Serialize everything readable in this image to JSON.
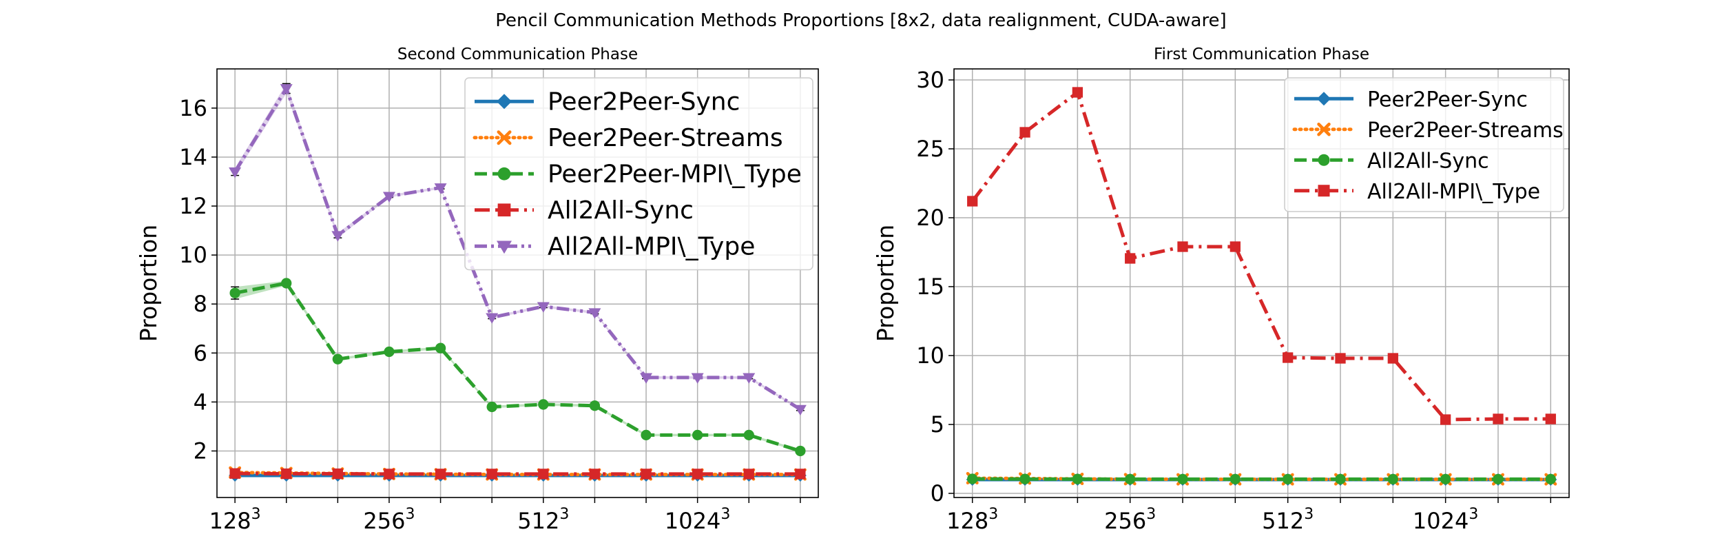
{
  "figure": {
    "title": "Pencil Communication Methods Proportions [8x2, data realignment, CUDA-aware]"
  },
  "chart_data": [
    {
      "type": "line",
      "title": "Second Communication Phase",
      "xlabel": "",
      "ylabel": "Proportion",
      "x": [
        1,
        2,
        3,
        4,
        5,
        6,
        7,
        8,
        9,
        10,
        11,
        12
      ],
      "xticks": [
        {
          "x": 1,
          "base": "128",
          "exp": "3"
        },
        {
          "x": 4,
          "base": "256",
          "exp": "3"
        },
        {
          "x": 7,
          "base": "512",
          "exp": "3"
        },
        {
          "x": 10,
          "base": "1024",
          "exp": "3"
        }
      ],
      "xlim": [
        0.65,
        12.35
      ],
      "ylim": [
        0.1,
        17.6
      ],
      "yticks": [
        2,
        4,
        6,
        8,
        10,
        12,
        14,
        16
      ],
      "grid": true,
      "legend_position": "top-right",
      "series": [
        {
          "name": "Peer2Peer-Sync",
          "color": "#1f77b4",
          "marker": "diamond",
          "dash": "solid",
          "values": [
            1,
            1,
            1,
            1,
            1,
            1,
            1,
            1,
            1,
            1,
            1,
            1
          ]
        },
        {
          "name": "Peer2Peer-Streams",
          "color": "#ff7f0e",
          "marker": "x",
          "dash": "dotted",
          "values": [
            1.12,
            1.1,
            1.08,
            1.06,
            1.05,
            1.04,
            1.04,
            1.04,
            1.04,
            1.04,
            1.04,
            1.04
          ]
        },
        {
          "name": "Peer2Peer-MPI\\_Type",
          "color": "#2ca02c",
          "marker": "circle",
          "dash": "dashed",
          "values": [
            8.45,
            8.85,
            5.75,
            6.05,
            6.2,
            3.8,
            3.9,
            3.85,
            2.65,
            2.65,
            2.65,
            2.0
          ],
          "errors": [
            0.25,
            0.1,
            0.05,
            0.05,
            0.05,
            0.05,
            0.05,
            0.05,
            0.05,
            0.05,
            0.05,
            0.05
          ]
        },
        {
          "name": "All2All-Sync",
          "color": "#d62728",
          "marker": "square",
          "dash": "dashdot",
          "values": [
            1.08,
            1.07,
            1.07,
            1.06,
            1.06,
            1.06,
            1.06,
            1.06,
            1.06,
            1.06,
            1.06,
            1.06
          ]
        },
        {
          "name": "All2All-MPI\\_Type",
          "color": "#9467bd",
          "marker": "triangle-down",
          "dash": "dashdotdot",
          "values": [
            13.4,
            16.8,
            10.8,
            12.4,
            12.75,
            7.45,
            7.9,
            7.65,
            5.0,
            5.0,
            5.0,
            3.7
          ],
          "errors": [
            0.15,
            0.2,
            0.1,
            0.05,
            0.05,
            0.05,
            0.05,
            0.05,
            0.05,
            0.05,
            0.05,
            0.05
          ]
        }
      ]
    },
    {
      "type": "line",
      "title": "First Communication Phase",
      "xlabel": "",
      "ylabel": "Proportion",
      "x": [
        1,
        2,
        3,
        4,
        5,
        6,
        7,
        8,
        9,
        10,
        11,
        12
      ],
      "xticks": [
        {
          "x": 1,
          "base": "128",
          "exp": "3"
        },
        {
          "x": 4,
          "base": "256",
          "exp": "3"
        },
        {
          "x": 7,
          "base": "512",
          "exp": "3"
        },
        {
          "x": 10,
          "base": "1024",
          "exp": "3"
        }
      ],
      "xlim": [
        0.65,
        12.35
      ],
      "ylim": [
        -0.3,
        30.8
      ],
      "yticks": [
        0,
        5,
        10,
        15,
        20,
        25,
        30
      ],
      "grid": true,
      "legend_position": "top-right",
      "series": [
        {
          "name": "Peer2Peer-Sync",
          "color": "#1f77b4",
          "marker": "diamond",
          "dash": "solid",
          "values": [
            1,
            1,
            1,
            1,
            1,
            1,
            1,
            1,
            1,
            1,
            1,
            1
          ]
        },
        {
          "name": "Peer2Peer-Streams",
          "color": "#ff7f0e",
          "marker": "x",
          "dash": "dotted",
          "values": [
            1.1,
            1.08,
            1.05,
            1.03,
            1.02,
            1.02,
            1.02,
            1.02,
            1.02,
            1.02,
            1.02,
            1.02
          ]
        },
        {
          "name": "All2All-Sync",
          "color": "#2ca02c",
          "marker": "circle",
          "dash": "dashed",
          "values": [
            1.05,
            1.04,
            1.04,
            1.03,
            1.03,
            1.03,
            1.03,
            1.03,
            1.03,
            1.03,
            1.03,
            1.03
          ]
        },
        {
          "name": "All2All-MPI\\_Type",
          "color": "#d62728",
          "marker": "square",
          "dash": "dashdot",
          "values": [
            21.2,
            26.2,
            29.1,
            17.05,
            17.9,
            17.9,
            9.85,
            9.8,
            9.8,
            5.35,
            5.4,
            5.4
          ]
        }
      ]
    }
  ]
}
